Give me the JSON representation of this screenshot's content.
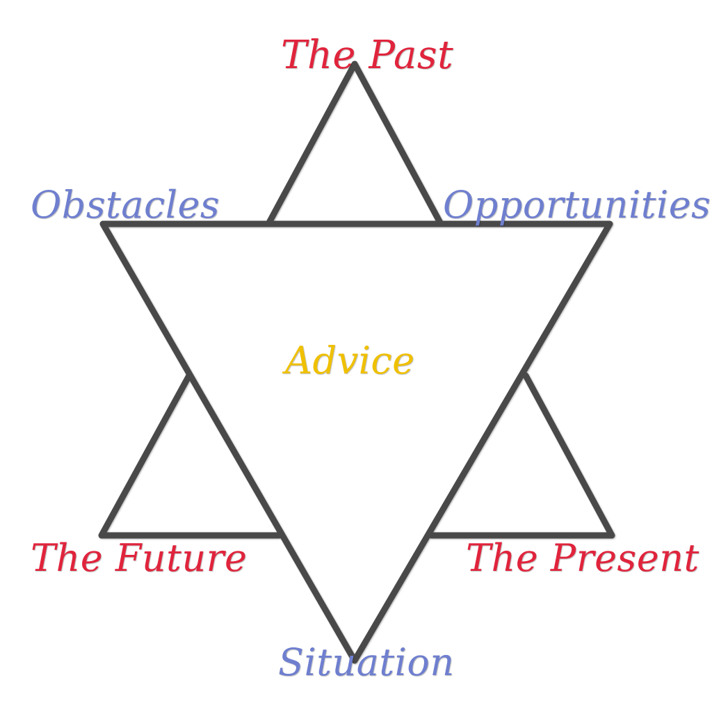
{
  "diagram": {
    "line_color": "#4a4a4a",
    "colors": {
      "time_positions": "#e0243c",
      "influence_positions": "#6f7fcf",
      "center": "#efc000"
    },
    "labels": {
      "past": "The Past",
      "obstacles": "Obstacles",
      "opportunities": "Opportunities",
      "advice": "Advice",
      "future": "The Future",
      "present": "The Present",
      "situation": "Situation"
    }
  }
}
